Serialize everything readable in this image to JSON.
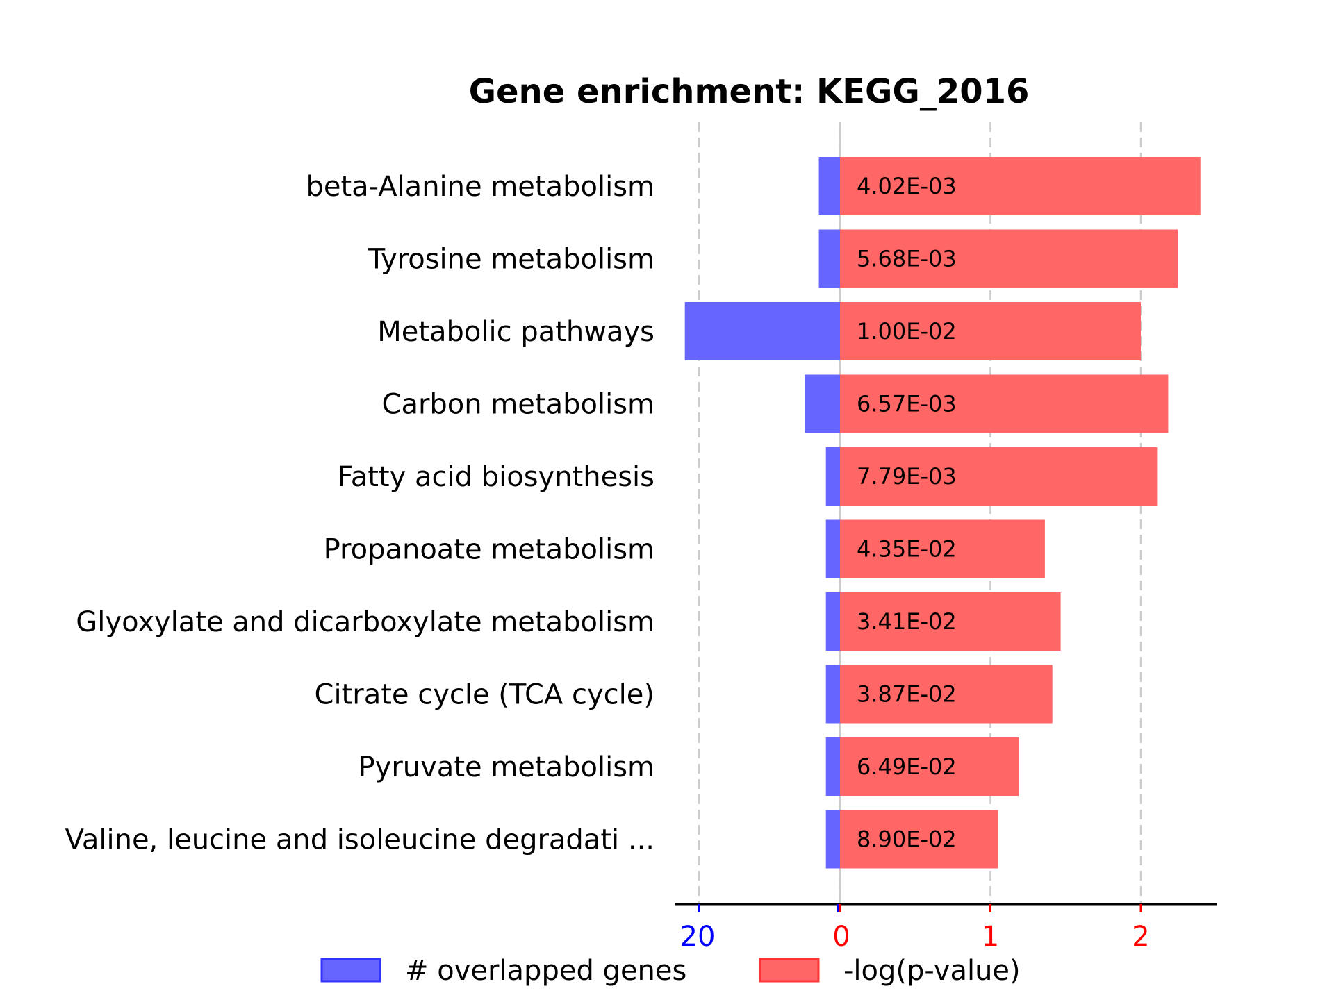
{
  "chart_data": {
    "type": "bar",
    "title": "Gene enrichment: KEGG_2016",
    "categories": [
      "beta-Alanine metabolism",
      "Tyrosine metabolism",
      "Metabolic pathways",
      "Carbon metabolism",
      "Fatty acid biosynthesis",
      "Propanoate metabolism",
      "Glyoxylate and dicarboxylate metabolism",
      "Citrate cycle (TCA cycle)",
      "Pyruvate metabolism",
      "Valine, leucine and isoleucine degradati ..."
    ],
    "series": [
      {
        "name": "# overlapped genes",
        "color": "#6666ff",
        "values": [
          3,
          3,
          22,
          5,
          2,
          2,
          2,
          2,
          2,
          2
        ],
        "axis_ticks": [
          "20",
          "0"
        ]
      },
      {
        "name": "-log(p-value)",
        "color": "#ff6666",
        "values": [
          2.396,
          2.246,
          2.0,
          2.182,
          2.108,
          1.362,
          1.467,
          1.412,
          1.188,
          1.051
        ],
        "axis_ticks": [
          "0",
          "1",
          "2"
        ]
      }
    ],
    "pvalue_labels": [
      "4.02E-03",
      "5.68E-03",
      "1.00E-02",
      "6.57E-03",
      "7.79E-03",
      "4.35E-02",
      "3.41E-02",
      "3.87E-02",
      "6.49E-02",
      "8.90E-02"
    ],
    "xlim_genes": [
      0,
      22
    ],
    "xlim_logp": [
      0,
      2.5
    ],
    "grid": true,
    "legend_position": "bottom",
    "tick_colors": {
      "genes": "#0000ff",
      "logp": "#ff0000"
    }
  }
}
